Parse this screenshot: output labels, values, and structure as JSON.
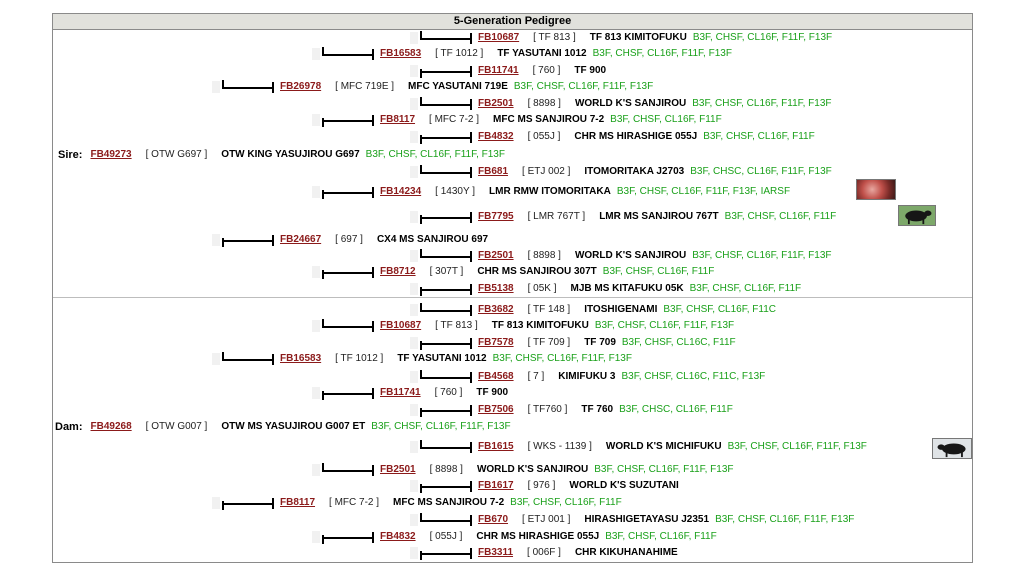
{
  "title": "5-Generation Pedigree",
  "sire_label": "Sire:",
  "dam_label": "Dam:",
  "thumbnails": [
    "marbling-photo",
    "black-bull-photo",
    "black-bull-photo"
  ],
  "rows": [
    {
      "reg": "FB10687",
      "herd": "[ TF 813 ]",
      "name": "TF 813 KIMITOFUKU",
      "genes": "B3F, CHSF, CL16F, F11F, F13F"
    },
    {
      "reg": "FB16583",
      "herd": "[ TF 1012 ]",
      "name": "TF YASUTANI 1012",
      "genes": "B3F, CHSF, CL16F, F11F, F13F"
    },
    {
      "reg": "FB11741",
      "herd": "[ 760 ]",
      "name": "TF 900",
      "genes": ""
    },
    {
      "reg": "FB26978",
      "herd": "[ MFC 719E ]",
      "name": "MFC YASUTANI 719E",
      "genes": "B3F, CHSF, CL16F, F11F, F13F"
    },
    {
      "reg": "FB2501",
      "herd": "[ 8898 ]",
      "name": "WORLD K'S SANJIROU",
      "genes": "B3F, CHSF, CL16F, F11F, F13F"
    },
    {
      "reg": "FB8117",
      "herd": "[ MFC 7-2 ]",
      "name": "MFC MS SANJIROU 7-2",
      "genes": "B3F, CHSF, CL16F, F11F"
    },
    {
      "reg": "FB4832",
      "herd": "[ 055J ]",
      "name": "CHR MS HIRASHIGE 055J",
      "genes": "B3F, CHSF, CL16F, F11F"
    },
    {
      "reg": "FB49273",
      "herd": "[ OTW G697 ]",
      "name": "OTW KING YASUJIROU G697",
      "genes": "B3F, CHSF, CL16F, F11F, F13F"
    },
    {
      "reg": "FB681",
      "herd": "[ ETJ 002 ]",
      "name": "ITOMORITAKA J2703",
      "genes": "B3F, CHSC, CL16F, F11F, F13F"
    },
    {
      "reg": "FB14234",
      "herd": "[ 1430Y ]",
      "name": "LMR RMW ITOMORITAKA",
      "genes": "B3F, CHSF, CL16F, F11F, F13F, IARSF"
    },
    {
      "reg": "FB7795",
      "herd": "[ LMR 767T ]",
      "name": "LMR MS SANJIROU 767T",
      "genes": "B3F, CHSF, CL16F, F11F"
    },
    {
      "reg": "FB24667",
      "herd": "[ 697 ]",
      "name": "CX4 MS SANJIROU 697",
      "genes": ""
    },
    {
      "reg": "FB2501",
      "herd": "[ 8898 ]",
      "name": "WORLD K'S SANJIROU",
      "genes": "B3F, CHSF, CL16F, F11F, F13F"
    },
    {
      "reg": "FB8712",
      "herd": "[ 307T ]",
      "name": "CHR MS SANJIROU 307T",
      "genes": "B3F, CHSF, CL16F, F11F"
    },
    {
      "reg": "FB5138",
      "herd": "[ 05K ]",
      "name": "MJB MS KITAFUKU 05K",
      "genes": "B3F, CHSF, CL16F, F11F"
    },
    {
      "reg": "FB3682",
      "herd": "[ TF 148 ]",
      "name": "ITOSHIGENAMI",
      "genes": "B3F, CHSF, CL16F, F11C"
    },
    {
      "reg": "FB10687",
      "herd": "[ TF 813 ]",
      "name": "TF 813 KIMITOFUKU",
      "genes": "B3F, CHSF, CL16F, F11F, F13F"
    },
    {
      "reg": "FB7578",
      "herd": "[ TF 709 ]",
      "name": "TF 709",
      "genes": "B3F, CHSF, CL16C, F11F"
    },
    {
      "reg": "FB16583",
      "herd": "[ TF 1012 ]",
      "name": "TF YASUTANI 1012",
      "genes": "B3F, CHSF, CL16F, F11F, F13F"
    },
    {
      "reg": "FB4568",
      "herd": "[ 7 ]",
      "name": "KIMIFUKU 3",
      "genes": "B3F, CHSF, CL16C, F11C, F13F"
    },
    {
      "reg": "FB11741",
      "herd": "[ 760 ]",
      "name": "TF 900",
      "genes": ""
    },
    {
      "reg": "FB7506",
      "herd": "[ TF760 ]",
      "name": "TF 760",
      "genes": "B3F, CHSC, CL16F, F11F"
    },
    {
      "reg": "FB49268",
      "herd": "[ OTW G007 ]",
      "name": "OTW MS YASUJIROU G007 ET",
      "genes": "B3F, CHSF, CL16F, F11F, F13F"
    },
    {
      "reg": "FB1615",
      "herd": "[ WKS - 1139 ]",
      "name": "WORLD K'S MICHIFUKU",
      "genes": "B3F, CHSF, CL16F, F11F, F13F"
    },
    {
      "reg": "FB2501",
      "herd": "[ 8898 ]",
      "name": "WORLD K'S SANJIROU",
      "genes": "B3F, CHSF, CL16F, F11F, F13F"
    },
    {
      "reg": "FB1617",
      "herd": "[ 976 ]",
      "name": "WORLD K'S SUZUTANI",
      "genes": ""
    },
    {
      "reg": "FB8117",
      "herd": "[ MFC 7-2 ]",
      "name": "MFC MS SANJIROU 7-2",
      "genes": "B3F, CHSF, CL16F, F11F"
    },
    {
      "reg": "FB670",
      "herd": "[ ETJ 001 ]",
      "name": "HIRASHIGETAYASU J2351",
      "genes": "B3F, CHSF, CL16F, F11F, F13F"
    },
    {
      "reg": "FB4832",
      "herd": "[ 055J ]",
      "name": "CHR MS HIRASHIGE 055J",
      "genes": "B3F, CHSF, CL16F, F11F"
    },
    {
      "reg": "FB3311",
      "herd": "[ 006F ]",
      "name": "CHR KIKUHANAHIME",
      "genes": ""
    }
  ]
}
